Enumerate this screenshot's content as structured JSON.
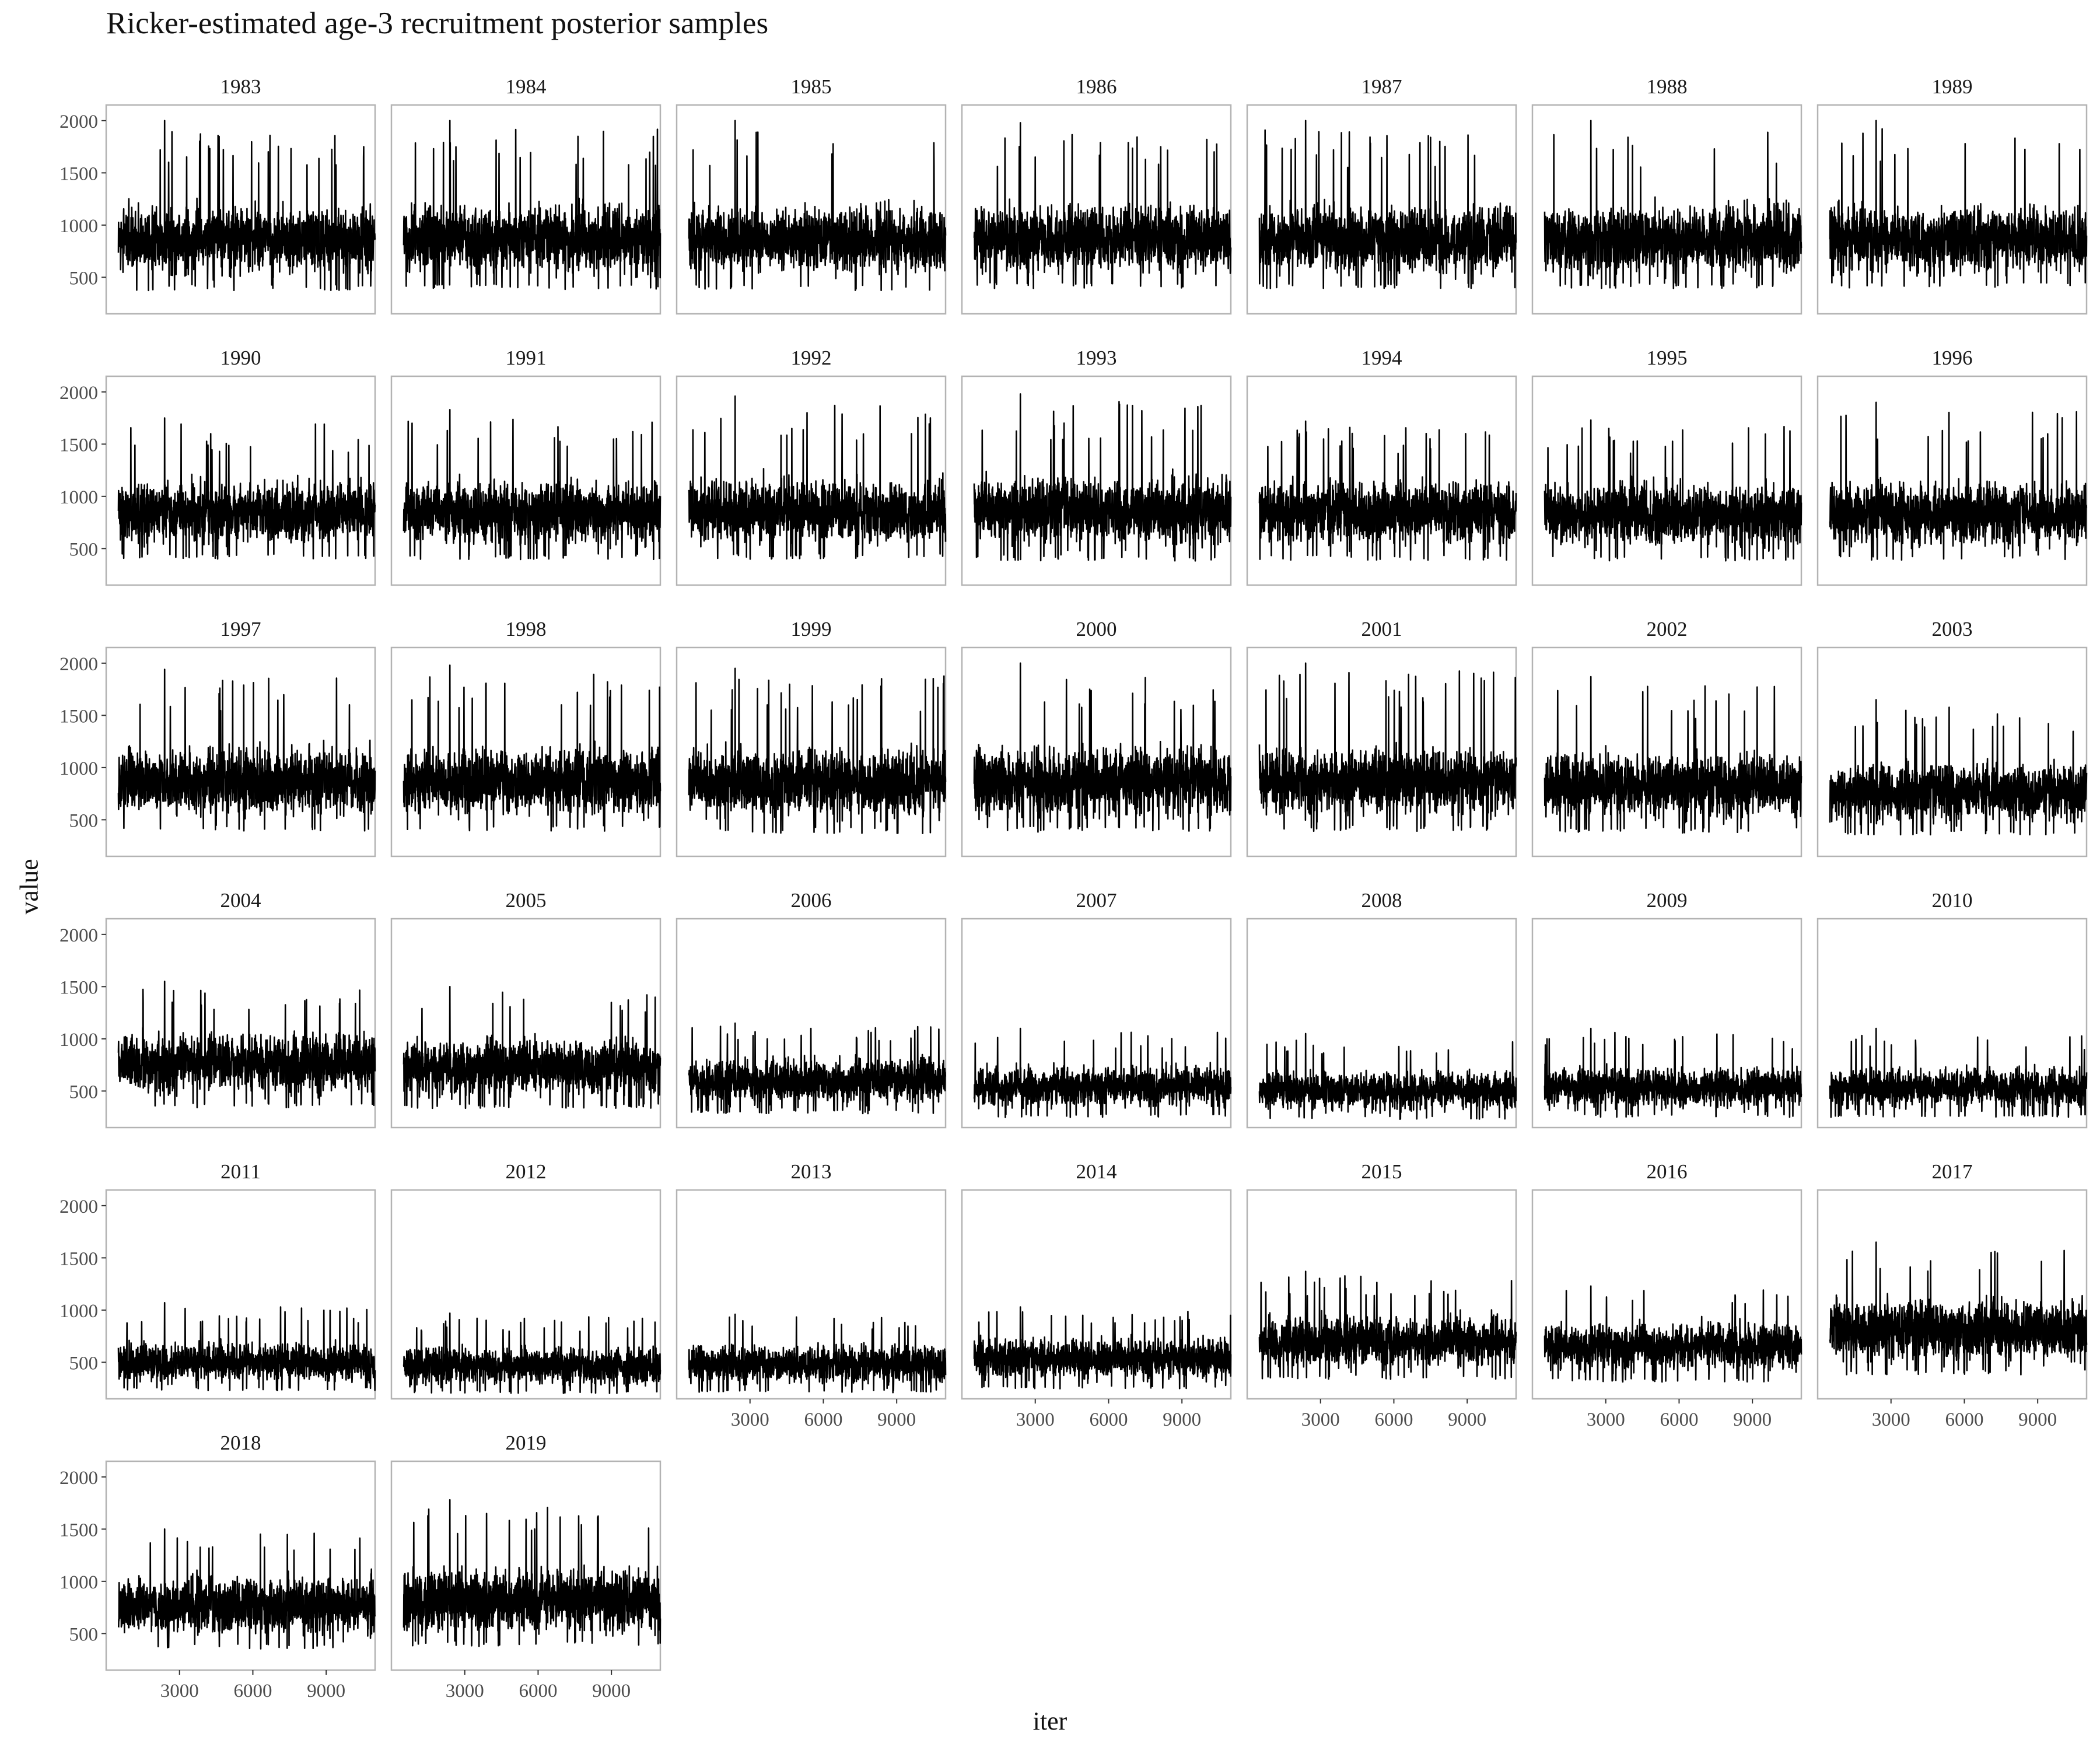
{
  "chart_data": {
    "type": "line",
    "title": "Ricker-estimated age-3 recruitment posterior samples",
    "xlabel": "iter",
    "ylabel": "value",
    "facet_by": "year",
    "layout": "facet grid, 7 columns x 6 rows, shared axes",
    "x_ticks": [
      3000,
      6000,
      9000
    ],
    "y_ticks": [
      500,
      1000,
      1500,
      2000
    ],
    "xlim": [
      0,
      11000
    ],
    "ylim": [
      150,
      2150
    ],
    "grid": false,
    "series_color": "#000000",
    "panels": [
      {
        "year": "1983",
        "center": 800,
        "low": 430,
        "high": 1250,
        "max": 2000
      },
      {
        "year": "1984",
        "center": 820,
        "low": 440,
        "high": 1250,
        "max": 2000
      },
      {
        "year": "1985",
        "center": 800,
        "low": 430,
        "high": 1250,
        "max": 2000
      },
      {
        "year": "1986",
        "center": 830,
        "low": 450,
        "high": 1250,
        "max": 1980
      },
      {
        "year": "1987",
        "center": 830,
        "low": 450,
        "high": 1250,
        "max": 2000
      },
      {
        "year": "1988",
        "center": 830,
        "low": 450,
        "high": 1250,
        "max": 2000
      },
      {
        "year": "1989",
        "center": 830,
        "low": 450,
        "high": 1250,
        "max": 2000
      },
      {
        "year": "1990",
        "center": 810,
        "low": 450,
        "high": 1200,
        "max": 1750
      },
      {
        "year": "1991",
        "center": 810,
        "low": 450,
        "high": 1200,
        "max": 1830
      },
      {
        "year": "1992",
        "center": 830,
        "low": 450,
        "high": 1230,
        "max": 1960
      },
      {
        "year": "1993",
        "center": 830,
        "low": 440,
        "high": 1250,
        "max": 1980
      },
      {
        "year": "1994",
        "center": 800,
        "low": 440,
        "high": 1200,
        "max": 1720
      },
      {
        "year": "1995",
        "center": 790,
        "low": 430,
        "high": 1180,
        "max": 1730
      },
      {
        "year": "1996",
        "center": 800,
        "low": 440,
        "high": 1200,
        "max": 1900
      },
      {
        "year": "1997",
        "center": 840,
        "low": 450,
        "high": 1250,
        "max": 1940
      },
      {
        "year": "1998",
        "center": 840,
        "low": 450,
        "high": 1250,
        "max": 1980
      },
      {
        "year": "1999",
        "center": 830,
        "low": 430,
        "high": 1250,
        "max": 1950
      },
      {
        "year": "2000",
        "center": 840,
        "low": 440,
        "high": 1250,
        "max": 2000
      },
      {
        "year": "2001",
        "center": 840,
        "low": 450,
        "high": 1250,
        "max": 2000
      },
      {
        "year": "2002",
        "center": 800,
        "low": 430,
        "high": 1200,
        "max": 1870
      },
      {
        "year": "2003",
        "center": 730,
        "low": 400,
        "high": 1100,
        "max": 1650
      },
      {
        "year": "2004",
        "center": 730,
        "low": 390,
        "high": 1100,
        "max": 1550
      },
      {
        "year": "2005",
        "center": 690,
        "low": 380,
        "high": 1050,
        "max": 1500
      },
      {
        "year": "2006",
        "center": 560,
        "low": 320,
        "high": 850,
        "max": 1150
      },
      {
        "year": "2007",
        "center": 490,
        "low": 280,
        "high": 780,
        "max": 1100
      },
      {
        "year": "2008",
        "center": 460,
        "low": 260,
        "high": 720,
        "max": 1050
      },
      {
        "year": "2009",
        "center": 490,
        "low": 280,
        "high": 760,
        "max": 1100
      },
      {
        "year": "2010",
        "center": 490,
        "low": 280,
        "high": 760,
        "max": 1100
      },
      {
        "year": "2011",
        "center": 470,
        "low": 260,
        "high": 720,
        "max": 1070
      },
      {
        "year": "2012",
        "center": 420,
        "low": 230,
        "high": 680,
        "max": 970
      },
      {
        "year": "2013",
        "center": 440,
        "low": 240,
        "high": 700,
        "max": 960
      },
      {
        "year": "2014",
        "center": 500,
        "low": 280,
        "high": 760,
        "max": 1030
      },
      {
        "year": "2015",
        "center": 660,
        "low": 380,
        "high": 980,
        "max": 1370
      },
      {
        "year": "2016",
        "center": 610,
        "low": 350,
        "high": 920,
        "max": 1230
      },
      {
        "year": "2017",
        "center": 770,
        "low": 430,
        "high": 1150,
        "max": 1650
      },
      {
        "year": "2018",
        "center": 730,
        "low": 400,
        "high": 1100,
        "max": 1500
      },
      {
        "year": "2019",
        "center": 790,
        "low": 430,
        "high": 1180,
        "max": 1780
      }
    ]
  }
}
